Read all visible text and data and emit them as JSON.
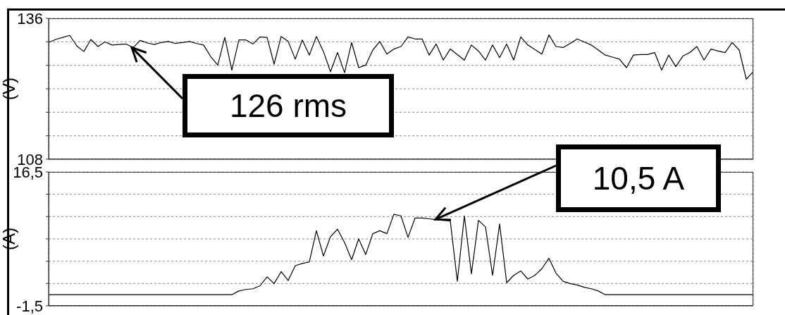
{
  "chart_data": [
    {
      "type": "line",
      "ylabel": "(V)",
      "categories": [
        null,
        null,
        null,
        null,
        null,
        null,
        null,
        null,
        null,
        null,
        null,
        null,
        null,
        null,
        null,
        null,
        null,
        null,
        null,
        null,
        null,
        null,
        null,
        null,
        null,
        null,
        null,
        null,
        null,
        null,
        null,
        null,
        null,
        null,
        null,
        null,
        null,
        null,
        null,
        null,
        null,
        null,
        null,
        null,
        null,
        null,
        null,
        null,
        null,
        null,
        null,
        null,
        null,
        null,
        null,
        null,
        null,
        null,
        null,
        null,
        null,
        null,
        null,
        null,
        null,
        null,
        null,
        null,
        null,
        null,
        null,
        null,
        null,
        null,
        null,
        null,
        null,
        null,
        null,
        null,
        null,
        null,
        null,
        null,
        null,
        null,
        null,
        null,
        null,
        null,
        null,
        null,
        null,
        null,
        null,
        null,
        null,
        null,
        null,
        null,
        null
      ],
      "ylim": [
        108,
        136
      ],
      "yticks": [
        108,
        {
          "value": 112.67,
          "label": null
        },
        {
          "value": 117.33,
          "label": null
        },
        {
          "value": 122,
          "label": null
        },
        {
          "value": 126.67,
          "label": null
        },
        {
          "value": 131.33,
          "label": null
        },
        136
      ],
      "tick_labels": "y",
      "grid": true,
      "marker": "none",
      "line_style": "solid",
      "annotations": [
        {
          "text": "126 rms",
          "y": 130.2
        }
      ],
      "series": [
        {
          "color": "#000000",
          "values": [
            131.2,
            131.8,
            132.2,
            132.6,
            130.5,
            129.4,
            131.8,
            130.4,
            131.3,
            130.7,
            130.8,
            130.9,
            130.2,
            131.6,
            131.1,
            130.8,
            131.2,
            131.4,
            131,
            131.2,
            131.4,
            131,
            130.7,
            128.4,
            126.7,
            132.2,
            125.7,
            131.7,
            131.7,
            130.9,
            132.3,
            132.2,
            126.9,
            132.4,
            131.4,
            127.9,
            131.7,
            128.7,
            132.4,
            129.4,
            125.4,
            129.2,
            125.2,
            131.2,
            126.2,
            126.7,
            129.7,
            131.4,
            128.9,
            129.9,
            130.4,
            132.3,
            131.9,
            131.9,
            128.7,
            130.9,
            127.7,
            129.9,
            128.8,
            127.7,
            130.7,
            129.5,
            127.7,
            130.7,
            128.2,
            130.9,
            127.7,
            132.3,
            130.7,
            129.8,
            128.9,
            132.7,
            130.4,
            130.2,
            131,
            131.9,
            131.3,
            130.7,
            129.7,
            128.7,
            128.3,
            127.9,
            126.2,
            128.7,
            128.8,
            128.8,
            129.2,
            125.7,
            128.7,
            126.4,
            128.5,
            129.2,
            130.4,
            127.7,
            129.9,
            129.5,
            129.2,
            131.2,
            129.7,
            123.9,
            125.4
          ]
        }
      ]
    },
    {
      "type": "line",
      "ylabel": "(A)",
      "categories": [
        null,
        null,
        null,
        null,
        null,
        null,
        null,
        null,
        null,
        null,
        null,
        null,
        null,
        null,
        null,
        null,
        null,
        null,
        null,
        null,
        null,
        null,
        null,
        null,
        null,
        null,
        null,
        null,
        null,
        null,
        null,
        null,
        null,
        null,
        null,
        null,
        null,
        null,
        null,
        null,
        null,
        null,
        null,
        null,
        null,
        null,
        null,
        null,
        null,
        null,
        null,
        null,
        null,
        null,
        null,
        null,
        null,
        null,
        null,
        null,
        null,
        null,
        null,
        null,
        null,
        null,
        null,
        null,
        null,
        null,
        null,
        null,
        null,
        null,
        null,
        null,
        null,
        null,
        null,
        null,
        null,
        null,
        null,
        null,
        null,
        null,
        null,
        null,
        null,
        null,
        null,
        null,
        null,
        null,
        null,
        null,
        null,
        null,
        null,
        null,
        null
      ],
      "ylim": [
        -1.5,
        16.5
      ],
      "yticks": [
        {
          "value": -1.5,
          "label": "-1,5"
        },
        {
          "value": 1.5,
          "label": null
        },
        {
          "value": 4.5,
          "label": null
        },
        {
          "value": 7.5,
          "label": null
        },
        {
          "value": 10.5,
          "label": null
        },
        {
          "value": 13.5,
          "label": null
        },
        {
          "value": 16.5,
          "label": "16,5"
        }
      ],
      "tick_labels": "y",
      "grid": true,
      "marker": "none",
      "line_style": "solid",
      "annotations": [
        "10,5 A"
      ],
      "series": [
        {
          "color": "#000000",
          "values": [
            0,
            0,
            0,
            0,
            0,
            0,
            0,
            0,
            0,
            0,
            0,
            0,
            0,
            0,
            0,
            0,
            0,
            0,
            0,
            0,
            0,
            0,
            0,
            0,
            0,
            0,
            0,
            0.5,
            0.7,
            0.8,
            1.2,
            2.4,
            1.5,
            3.1,
            1.9,
            3.9,
            4.2,
            4.4,
            8.6,
            5.2,
            7.8,
            8.8,
            7,
            4.7,
            7.5,
            5.4,
            8.2,
            8.6,
            8.2,
            10.8,
            10.6,
            7.7,
            10.3,
            10.3,
            10.2,
            10.1,
            10,
            9.9,
            1.8,
            10.6,
            2.8,
            10,
            9.1,
            2.6,
            9.5,
            1.6,
            2.6,
            3.2,
            2.1,
            2.6,
            3.5,
            4.9,
            2.9,
            1.8,
            1.5,
            1.3,
            1,
            0.8,
            0.5,
            0,
            0,
            0,
            0,
            0,
            0,
            0,
            0,
            0,
            0,
            0,
            0,
            0,
            0,
            0,
            0,
            0,
            0,
            0,
            0,
            0,
            0
          ]
        }
      ]
    }
  ]
}
